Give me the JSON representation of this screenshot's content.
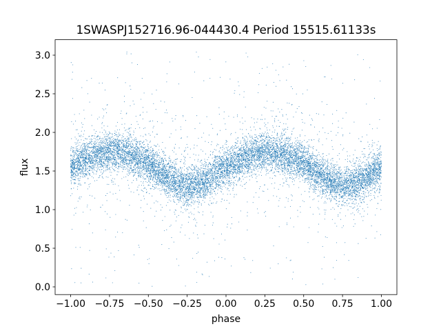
{
  "chart_data": {
    "type": "scatter",
    "title": "1SWASPJ152716.96-044430.4 Period 15515.61133s",
    "xlabel": "phase",
    "ylabel": "flux",
    "xlim": [
      -1.1,
      1.1
    ],
    "ylim": [
      -0.1,
      3.2
    ],
    "xticks": [
      -1.0,
      -0.75,
      -0.5,
      -0.25,
      0.0,
      0.25,
      0.5,
      0.75,
      1.0
    ],
    "xtick_labels": [
      "−1.00",
      "−0.75",
      "−0.50",
      "−0.25",
      "0.00",
      "0.25",
      "0.50",
      "0.75",
      "1.00"
    ],
    "yticks": [
      0.0,
      0.5,
      1.0,
      1.5,
      2.0,
      2.5,
      3.0
    ],
    "ytick_labels": [
      "0.0",
      "0.5",
      "1.0",
      "1.5",
      "2.0",
      "2.5",
      "3.0"
    ],
    "grid": false,
    "marker_color": "#1f77b4",
    "series": [
      {
        "phase_range": [
          -1.0,
          1.0
        ],
        "trend": {
          "phase": [
            -1.0,
            -0.875,
            -0.75,
            -0.625,
            -0.5,
            -0.375,
            -0.25,
            -0.125,
            0.0,
            0.125,
            0.25,
            0.375,
            0.5,
            0.625,
            0.75,
            0.875,
            1.0
          ],
          "flux": [
            1.55,
            1.68,
            1.75,
            1.72,
            1.6,
            1.42,
            1.3,
            1.38,
            1.55,
            1.68,
            1.75,
            1.72,
            1.6,
            1.42,
            1.3,
            1.38,
            1.55
          ]
        },
        "core_scatter": 0.12,
        "flux_range": [
          0.0,
          3.05
        ]
      }
    ]
  }
}
